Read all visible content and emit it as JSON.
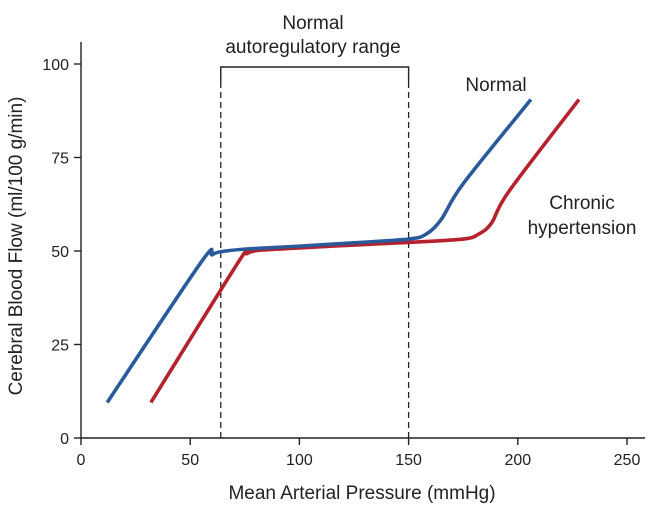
{
  "chart_data": {
    "type": "line",
    "xlabel": "Mean Arterial Pressure (mmHg)",
    "ylabel": "Cerebral Blood Flow (ml/100 g/min)",
    "xlim": [
      0,
      250
    ],
    "ylim": [
      0,
      100
    ],
    "xticks": [
      0,
      50,
      100,
      150,
      200,
      250
    ],
    "yticks": [
      0,
      25,
      50,
      75,
      100
    ],
    "grid": false,
    "autoregulatory_range": {
      "label_line1": "Normal",
      "label_line2": "autoregulatory range",
      "x_start": 64,
      "x_end": 150
    },
    "series": [
      {
        "name": "Normal",
        "color": "#2b5a9b",
        "points": [
          [
            12,
            9.5
          ],
          [
            55,
            47
          ],
          [
            60,
            49
          ],
          [
            64,
            49.8
          ],
          [
            75,
            50.5
          ],
          [
            100,
            51.3
          ],
          [
            125,
            52.2
          ],
          [
            150,
            53.2
          ],
          [
            158,
            54.5
          ],
          [
            165,
            58.5
          ],
          [
            175,
            68
          ],
          [
            206,
            90.5
          ]
        ]
      },
      {
        "name": "Chronic hypertension",
        "label_line1": "Chronic",
        "label_line2": "hypertension",
        "color": "#b5222d",
        "points": [
          [
            32,
            9.5
          ],
          [
            72,
            47
          ],
          [
            76,
            49.3
          ],
          [
            82,
            50.2
          ],
          [
            100,
            50.8
          ],
          [
            125,
            51.6
          ],
          [
            150,
            52.3
          ],
          [
            175,
            53.2
          ],
          [
            182,
            54.5
          ],
          [
            188,
            57.5
          ],
          [
            196,
            66
          ],
          [
            228,
            90.5
          ]
        ]
      }
    ]
  }
}
